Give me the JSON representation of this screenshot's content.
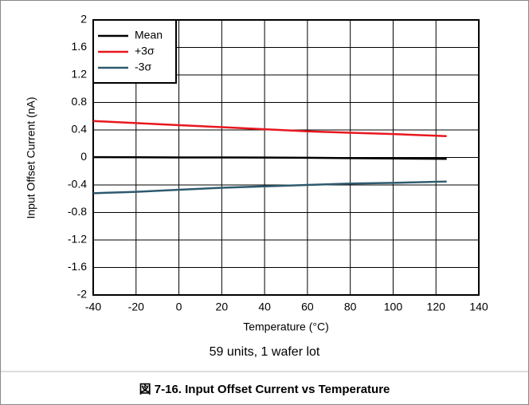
{
  "chart_data": {
    "type": "line",
    "xlabel": "Temperature (°C)",
    "ylabel": "Input Offset Current (nA)",
    "subtitle": "59 units, 1 wafer lot",
    "caption": "図 7-16. Input Offset Current vs Temperature",
    "x": [
      -40,
      -20,
      0,
      20,
      40,
      60,
      80,
      100,
      125
    ],
    "series": [
      {
        "name": "Mean",
        "color": "#000000",
        "values": [
          0.005,
          0.003,
          0,
          0,
          -0.002,
          -0.005,
          -0.01,
          -0.015,
          -0.02
        ]
      },
      {
        "name": "+3σ",
        "color": "#e8171f",
        "values": [
          0.53,
          0.5,
          0.47,
          0.44,
          0.41,
          0.38,
          0.36,
          0.34,
          0.31
        ]
      },
      {
        "name": "-3σ",
        "color": "#2e5a6e",
        "values": [
          -0.52,
          -0.5,
          -0.47,
          -0.44,
          -0.42,
          -0.4,
          -0.38,
          -0.37,
          -0.35
        ]
      }
    ],
    "xlim": [
      -40,
      140
    ],
    "xticks": [
      -40,
      -20,
      0,
      20,
      40,
      60,
      80,
      100,
      120,
      140
    ],
    "ylim": [
      -2,
      2
    ],
    "yticks": [
      -2,
      -1.6,
      -1.2,
      -0.8,
      -0.4,
      0,
      0.4,
      0.8,
      1.2,
      1.6,
      2
    ],
    "grid": true,
    "legend": "upper left"
  }
}
